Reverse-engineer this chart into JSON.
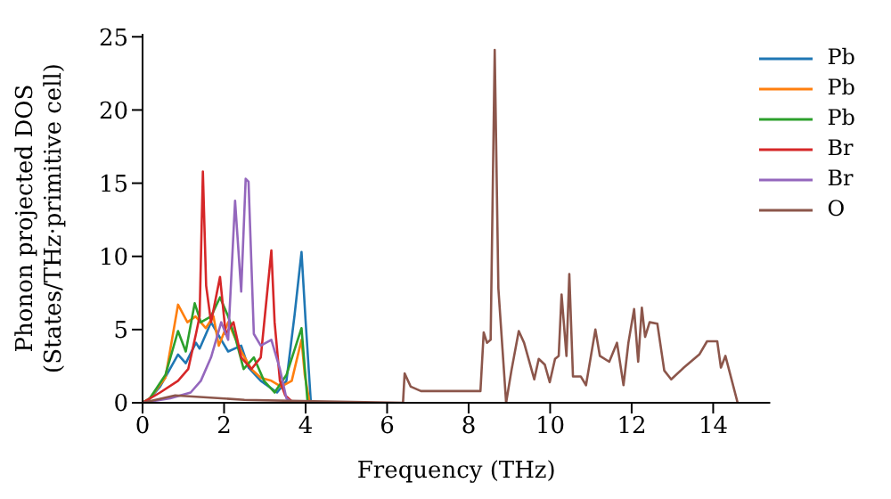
{
  "chart_data": {
    "type": "line",
    "xlabel": "Frequency (THz)",
    "ylabel": "Phonon projected DOS\n(States/THz·primitive cell)",
    "xlim": [
      0,
      15.4
    ],
    "xticks": [
      0,
      2,
      4,
      6,
      8,
      10,
      12,
      14
    ],
    "ylim": [
      0,
      25.2
    ],
    "yticks": [
      0,
      5,
      10,
      15,
      20,
      25
    ],
    "legend": "top right",
    "grid": false,
    "marker": "none",
    "line_style": "solid",
    "series": [
      {
        "name": "Pb",
        "color": "#1f77b4",
        "x": [
          0,
          0.18,
          0.43,
          0.87,
          1.06,
          1.31,
          1.4,
          1.68,
          1.93,
          2.1,
          2.42,
          2.6,
          2.9,
          3.3,
          3.53,
          3.73,
          3.9,
          4.0,
          4.13
        ],
        "values": [
          0,
          0.3,
          1.1,
          3.3,
          2.7,
          4.1,
          3.7,
          5.5,
          4.3,
          3.5,
          3.9,
          2.4,
          1.5,
          0.7,
          1.5,
          6.0,
          10.3,
          5.6,
          0
        ]
      },
      {
        "name": "Pb",
        "color": "#ff7f0e",
        "x": [
          0,
          0.18,
          0.56,
          0.87,
          1.1,
          1.3,
          1.55,
          1.74,
          1.87,
          2.1,
          2.42,
          2.67,
          2.9,
          3.16,
          3.4,
          3.66,
          3.9,
          3.98,
          4.1
        ],
        "values": [
          0,
          0.3,
          1.7,
          6.7,
          5.5,
          5.9,
          5.1,
          5.9,
          3.9,
          5.5,
          3.5,
          2.3,
          1.7,
          1.5,
          1.1,
          1.5,
          4.3,
          1.9,
          0
        ]
      },
      {
        "name": "Pb",
        "color": "#2ca02c",
        "x": [
          0,
          0.18,
          0.56,
          0.87,
          1.06,
          1.28,
          1.43,
          1.68,
          1.9,
          2.1,
          2.29,
          2.48,
          2.73,
          2.98,
          3.24,
          3.53,
          3.9,
          4.05
        ],
        "values": [
          0,
          0.3,
          1.9,
          4.9,
          3.5,
          6.8,
          5.5,
          5.9,
          7.2,
          5.9,
          4.3,
          2.3,
          3.1,
          1.5,
          0.7,
          1.9,
          5.1,
          0
        ]
      },
      {
        "name": "Br",
        "color": "#d62728",
        "x": [
          0,
          0.43,
          0.87,
          1.12,
          1.31,
          1.4,
          1.48,
          1.56,
          1.68,
          1.9,
          2.04,
          2.23,
          2.42,
          2.67,
          2.9,
          3.16,
          3.24,
          3.37,
          3.5,
          3.7
        ],
        "values": [
          0,
          0.7,
          1.5,
          2.3,
          4.7,
          5.9,
          15.8,
          8.0,
          5.5,
          8.6,
          4.7,
          5.5,
          3.1,
          2.3,
          3.1,
          10.4,
          5.5,
          1.5,
          0.5,
          0
        ]
      },
      {
        "name": "Br",
        "color": "#9467bd",
        "x": [
          0,
          0.68,
          1.18,
          1.43,
          1.68,
          1.93,
          2.1,
          2.27,
          2.42,
          2.53,
          2.6,
          2.73,
          2.9,
          3.16,
          3.37,
          3.53,
          3.7
        ],
        "values": [
          0,
          0.3,
          0.7,
          1.5,
          3.1,
          5.5,
          4.3,
          13.8,
          7.6,
          15.3,
          15.1,
          4.7,
          3.9,
          4.3,
          2.3,
          0.3,
          0
        ]
      },
      {
        "name": "O",
        "color": "#8c564b",
        "x": [
          0,
          0.8,
          2.5,
          4.2,
          6.39,
          6.43,
          6.58,
          6.83,
          8.29,
          8.37,
          8.45,
          8.54,
          8.64,
          8.73,
          8.83,
          8.92,
          9.05,
          9.23,
          9.36,
          9.61,
          9.72,
          9.87,
          9.99,
          10.12,
          10.21,
          10.28,
          10.4,
          10.47,
          10.56,
          10.75,
          10.88,
          11.11,
          11.22,
          11.45,
          11.64,
          11.8,
          11.92,
          12.06,
          12.16,
          12.25,
          12.33,
          12.44,
          12.63,
          12.8,
          12.97,
          13.28,
          13.66,
          13.85,
          14.1,
          14.19,
          14.3,
          14.6
        ],
        "values": [
          0,
          0.5,
          0.2,
          0.1,
          0,
          2.0,
          1.1,
          0.8,
          0.8,
          4.8,
          4.1,
          4.3,
          24.1,
          7.8,
          3.7,
          0,
          2.2,
          4.9,
          4.1,
          1.6,
          3.0,
          2.6,
          1.4,
          3.0,
          3.2,
          7.4,
          3.2,
          8.8,
          1.8,
          1.8,
          1.2,
          5.0,
          3.2,
          2.8,
          4.1,
          1.2,
          4.1,
          6.4,
          2.8,
          6.5,
          4.5,
          5.5,
          5.4,
          2.2,
          1.6,
          2.4,
          3.3,
          4.2,
          4.2,
          2.4,
          3.2,
          0
        ]
      }
    ]
  }
}
